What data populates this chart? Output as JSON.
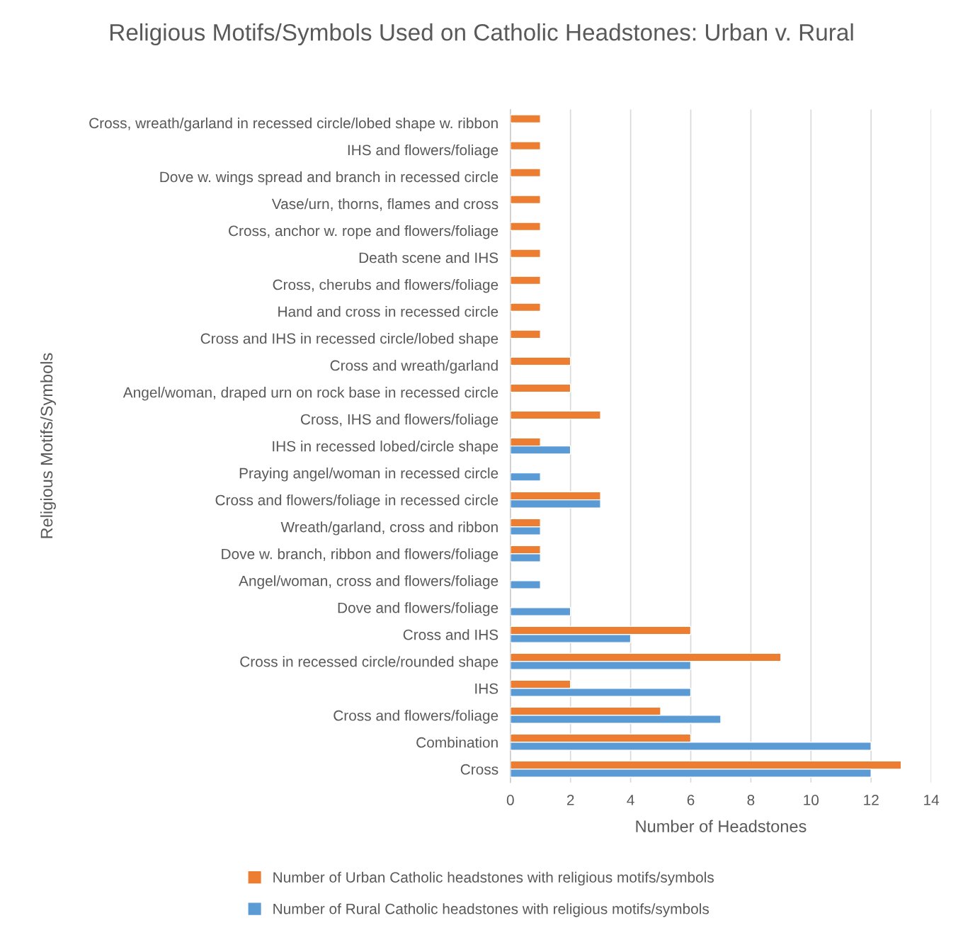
{
  "chart_data": {
    "type": "bar",
    "orientation": "horizontal",
    "title": "Religious Motifs/Symbols Used on Catholic Headstones: Urban v. Rural",
    "xlabel": "Number of Headstones",
    "ylabel": "Religious Motifs/Symbols",
    "categories": [
      "Cross, wreath/garland in recessed circle/lobed shape w. ribbon",
      "IHS and flowers/foliage",
      "Dove w. wings spread and branch in recessed circle",
      "Vase/urn, thorns, flames and cross",
      "Cross, anchor w. rope and flowers/foliage",
      "Death scene and IHS",
      "Cross, cherubs and flowers/foliage",
      "Hand and cross in recessed circle",
      "Cross and IHS in recessed circle/lobed shape",
      "Cross and wreath/garland",
      "Angel/woman, draped urn on rock base in recessed circle",
      "Cross, IHS and flowers/foliage",
      "IHS in recessed lobed/circle shape",
      "Praying angel/woman in recessed circle",
      "Cross and flowers/foliage in recessed circle",
      "Wreath/garland, cross and ribbon",
      "Dove w. branch, ribbon and flowers/foliage",
      "Angel/woman, cross and flowers/foliage",
      "Dove and flowers/foliage",
      "Cross and IHS",
      "Cross in recessed circle/rounded shape",
      "IHS",
      "Cross and flowers/foliage",
      "Combination",
      "Cross"
    ],
    "series": [
      {
        "name": "Number of Urban Catholic headstones with religious motifs/symbols",
        "color": "#ed7d31",
        "values": [
          1,
          1,
          1,
          1,
          1,
          1,
          1,
          1,
          1,
          2,
          2,
          3,
          1,
          null,
          3,
          1,
          1,
          null,
          null,
          6,
          9,
          2,
          5,
          6,
          13
        ]
      },
      {
        "name": "Number of Rural Catholic headstones with religious motifs/symbols",
        "color": "#5b9bd5",
        "values": [
          null,
          null,
          null,
          null,
          null,
          null,
          null,
          null,
          null,
          null,
          null,
          null,
          2,
          1,
          3,
          1,
          1,
          1,
          2,
          4,
          6,
          6,
          7,
          12,
          12
        ]
      }
    ],
    "xlim": [
      0,
      14
    ],
    "xticks": [
      0,
      2,
      4,
      6,
      8,
      10,
      12,
      14
    ],
    "grid": "x",
    "legend": "bottom"
  }
}
